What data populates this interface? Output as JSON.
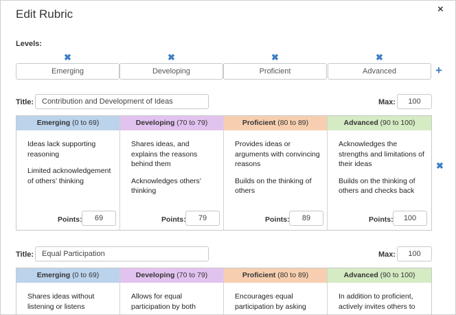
{
  "modal": {
    "title": "Edit Rubric",
    "close_icon": "×"
  },
  "levels": {
    "label": "Levels:",
    "remove_icon": "✖",
    "add_icon": "+",
    "items": [
      "Emerging",
      "Developing",
      "Proficient",
      "Advanced"
    ]
  },
  "colors": {
    "accent": "#3f7fc2",
    "emerging": "#bcd3ec",
    "developing": "#e2c3ef",
    "proficient": "#f7cfb0",
    "advanced": "#d5ebc3"
  },
  "criteria": [
    {
      "title_label": "Title:",
      "title_value": "Contribution and Development of Ideas",
      "max_label": "Max:",
      "max_value": "100",
      "remove_icon": "✖",
      "levels": [
        {
          "name": "Emerging",
          "range": "(0 to 69)",
          "lines": [
            "Ideas lack supporting reasoning",
            "Limited acknowledgement of others’ thinking"
          ],
          "points_label": "Points:",
          "points": "69"
        },
        {
          "name": "Developing",
          "range": "(70 to 79)",
          "lines": [
            "Shares ideas, and explains the reasons behind them",
            "Acknowledges others’ thinking"
          ],
          "points_label": "Points:",
          "points": "79"
        },
        {
          "name": "Proficient",
          "range": "(80 to 89)",
          "lines": [
            "Provides ideas or arguments with convincing reasons",
            "Builds on the thinking of others"
          ],
          "points_label": "Points:",
          "points": "89"
        },
        {
          "name": "Advanced",
          "range": "(90 to 100)",
          "lines": [
            "Acknowledges the strengths and limitations of their ideas",
            "Builds on the thinking of others and checks back"
          ],
          "points_label": "Points:",
          "points": "100"
        }
      ]
    },
    {
      "title_label": "Title:",
      "title_value": "Equal Participation",
      "max_label": "Max:",
      "max_value": "100",
      "levels": [
        {
          "name": "Emerging",
          "range": "(0 to 69)",
          "lines": [
            "Shares ideas without listening or listens"
          ]
        },
        {
          "name": "Developing",
          "range": "(70 to 79)",
          "lines": [
            "Allows for equal participation by both"
          ]
        },
        {
          "name": "Proficient",
          "range": "(80 to 89)",
          "lines": [
            "Encourages equal participation by asking"
          ]
        },
        {
          "name": "Advanced",
          "range": "(90 to 100)",
          "lines": [
            "In addition to proficient, actively invites others to"
          ]
        }
      ]
    }
  ]
}
